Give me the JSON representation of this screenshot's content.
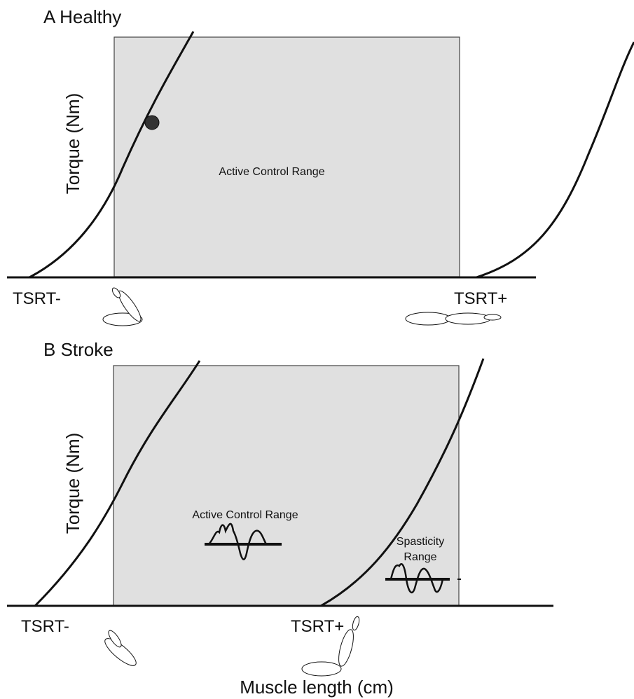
{
  "panels": [
    {
      "title": "A  Healthy",
      "y_label": "Torque (Nm)",
      "range_label": "Active Control Range",
      "left_threshold": "TSRT-",
      "right_threshold": "TSRT+"
    },
    {
      "title": "B  Stroke",
      "y_label": "Torque (Nm)",
      "range_label": "Active Control Range",
      "spasticity_label": [
        "Spasticity",
        "Range"
      ],
      "left_threshold": "TSRT-",
      "right_threshold": "TSRT+"
    }
  ],
  "x_label": "Muscle length (cm)"
}
